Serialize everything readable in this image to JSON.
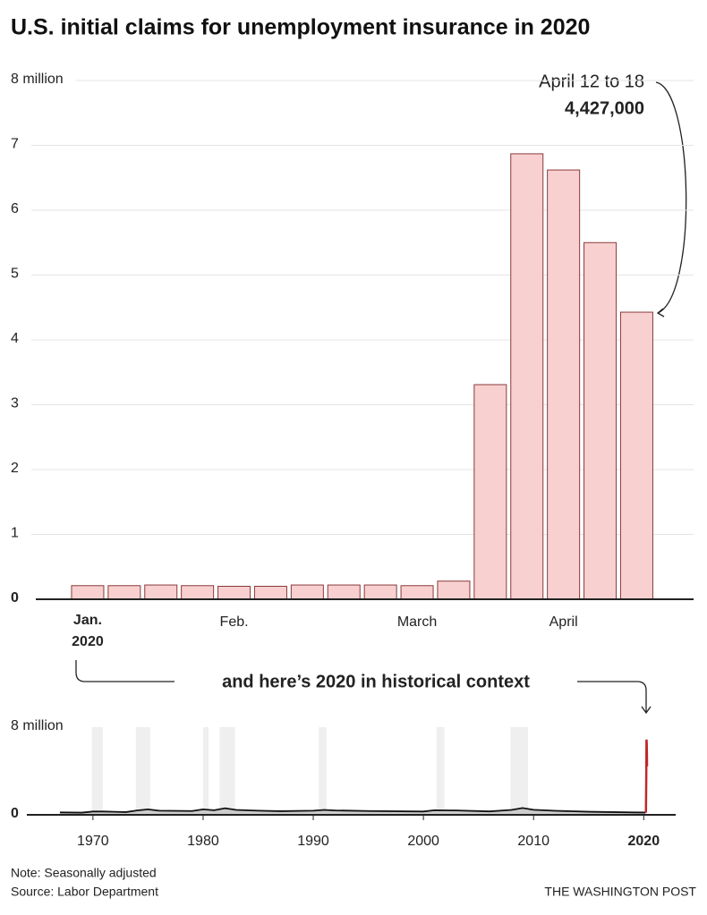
{
  "title": "U.S. initial claims for unemployment insurance in 2020",
  "chart_data": [
    {
      "type": "bar",
      "categories": [
        "Jan. 2020",
        null,
        null,
        null,
        "Feb.",
        null,
        null,
        null,
        null,
        "March",
        null,
        null,
        null,
        "April",
        null,
        null
      ],
      "values": [
        0.21,
        0.21,
        0.22,
        0.21,
        0.2,
        0.2,
        0.22,
        0.22,
        0.22,
        0.21,
        0.28,
        3.31,
        6.87,
        6.62,
        5.5,
        4.427
      ],
      "value_labels": [
        null,
        null,
        null,
        null,
        null,
        null,
        null,
        null,
        null,
        null,
        null,
        null,
        null,
        null,
        null,
        "4,427,000"
      ],
      "color": "#f8d0d0",
      "edge_color": "#8a3a3a",
      "ylim": [
        0,
        8
      ],
      "yticks": [
        0,
        1,
        2,
        3,
        4,
        5,
        6,
        7,
        {
          "value": 8,
          "label": "8 million"
        }
      ],
      "grid": true,
      "annotation": "April 12 to 18",
      "connector_text": "and here’s 2020 in historical context"
    },
    {
      "type": "line",
      "xlim": [
        1964,
        2022.9
      ],
      "ylim": [
        0,
        8
      ],
      "xticks": [
        1970,
        1980,
        1990,
        2000,
        2010,
        2020
      ],
      "yticks": [
        0,
        {
          "value": 8,
          "label": "8 million"
        }
      ],
      "recessions": [
        [
          1969.9,
          1970.9
        ],
        [
          1973.9,
          1975.2
        ],
        [
          1980.0,
          1980.5
        ],
        [
          1981.5,
          1982.9
        ],
        [
          1990.5,
          1991.2
        ],
        [
          2001.2,
          2001.9
        ],
        [
          2007.9,
          2009.5
        ]
      ],
      "recession_color": "#efefef",
      "series": [
        {
          "color": "#111111",
          "x": [
            1967,
            1969,
            1970,
            1971,
            1973,
            1974,
            1975,
            1976,
            1979,
            1980,
            1981,
            1982,
            1983,
            1985,
            1987,
            1990,
            1991,
            1992,
            1995,
            2000,
            2001,
            2003,
            2006,
            2008,
            2009,
            2010,
            2012,
            2015,
            2019,
            2020.15
          ],
          "values": [
            0.22,
            0.2,
            0.3,
            0.3,
            0.25,
            0.4,
            0.5,
            0.38,
            0.35,
            0.5,
            0.42,
            0.6,
            0.45,
            0.38,
            0.33,
            0.38,
            0.45,
            0.4,
            0.35,
            0.3,
            0.42,
            0.4,
            0.31,
            0.45,
            0.62,
            0.46,
            0.37,
            0.28,
            0.22,
            0.21
          ]
        },
        {
          "color": "#c0282b",
          "x": [
            2020.15,
            2020.2,
            2020.23,
            2020.25,
            2020.27,
            2020.29,
            2020.3
          ],
          "values": [
            0.21,
            0.28,
            3.31,
            6.87,
            6.62,
            5.5,
            4.427
          ]
        }
      ]
    }
  ],
  "note": "Note: Seasonally adjusted",
  "source": "Source: Labor Department",
  "credit": "THE WASHINGTON POST"
}
